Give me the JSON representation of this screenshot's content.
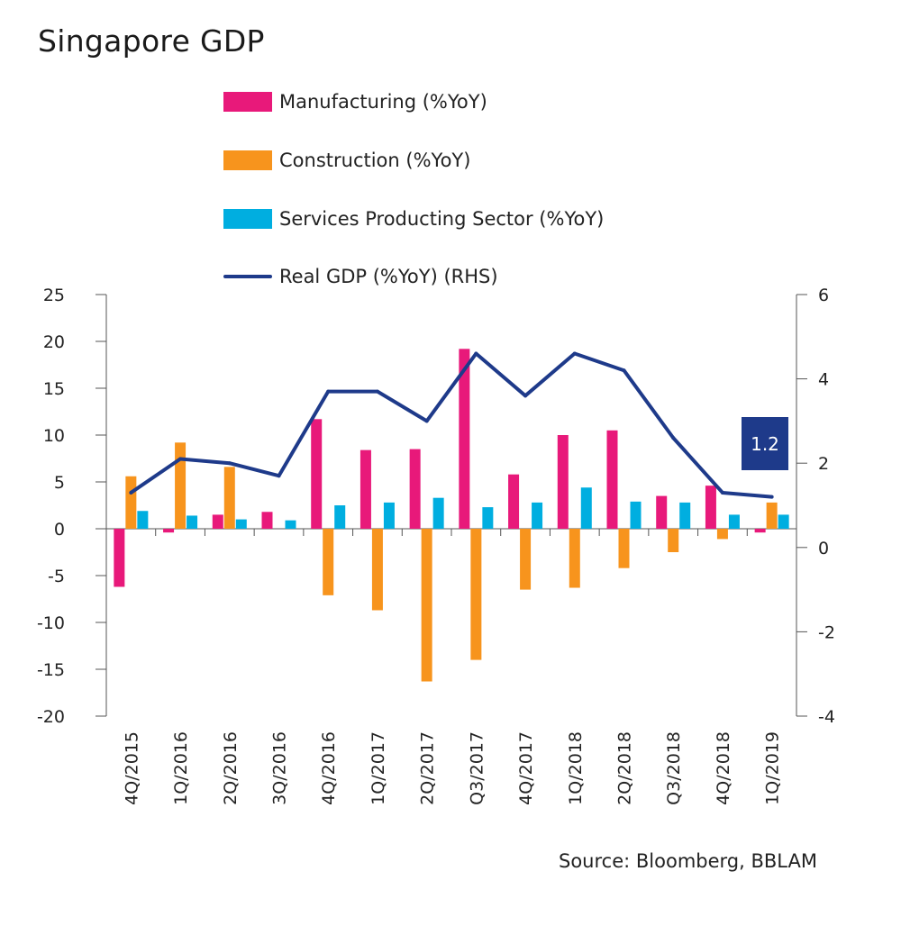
{
  "title": "Singapore GDP",
  "source": "Source: Bloomberg, BBLAM",
  "colors": {
    "manufacturing": "#e8197a",
    "construction": "#f7941d",
    "services": "#00aee0",
    "gdp": "#1e3a8a",
    "axis": "#555555",
    "callout_bg": "#1e3a8a",
    "callout_text": "#ffffff"
  },
  "chart_data": {
    "type": "bar",
    "title": "Singapore GDP",
    "categories": [
      "4Q/2015",
      "1Q/2016",
      "2Q/2016",
      "3Q/2016",
      "4Q/2016",
      "1Q/2017",
      "2Q/2017",
      "Q3/2017",
      "4Q/2017",
      "1Q/2018",
      "2Q/2018",
      "Q3/2018",
      "4Q/2018",
      "1Q/2019"
    ],
    "series": [
      {
        "name": "Manufacturing (%YoY)",
        "axis": "left",
        "type": "bar",
        "values": [
          -6.2,
          -0.4,
          1.5,
          1.8,
          11.7,
          8.4,
          8.5,
          19.2,
          5.8,
          10.0,
          10.5,
          3.5,
          4.6,
          -0.4
        ]
      },
      {
        "name": "Construction (%YoY)",
        "axis": "left",
        "type": "bar",
        "values": [
          5.6,
          9.2,
          6.6,
          null,
          -7.1,
          -8.7,
          -16.3,
          -14.0,
          -6.5,
          -6.3,
          -4.2,
          -2.5,
          -1.1,
          2.8
        ]
      },
      {
        "name": "Services Producting Sector (%YoY)",
        "axis": "left",
        "type": "bar",
        "values": [
          1.9,
          1.4,
          1.0,
          0.9,
          2.5,
          2.8,
          3.3,
          2.3,
          2.8,
          4.4,
          2.9,
          2.8,
          1.5,
          1.5
        ]
      },
      {
        "name": "Real GDP (%YoY) (RHS)",
        "axis": "right",
        "type": "line",
        "values": [
          1.3,
          2.1,
          2.0,
          1.7,
          3.7,
          3.7,
          3.0,
          4.6,
          3.6,
          4.6,
          4.2,
          2.6,
          1.3,
          1.2
        ]
      }
    ],
    "ylim_left": [
      -20,
      25
    ],
    "yticks_left": [
      25,
      20,
      15,
      10,
      5,
      0,
      -5,
      -10,
      -15,
      -20
    ],
    "ylim_right": [
      -4,
      6
    ],
    "yticks_right": [
      6,
      4,
      2,
      0,
      -2,
      -4
    ],
    "callout": "1.2",
    "legend_position": "top",
    "grid": false
  }
}
